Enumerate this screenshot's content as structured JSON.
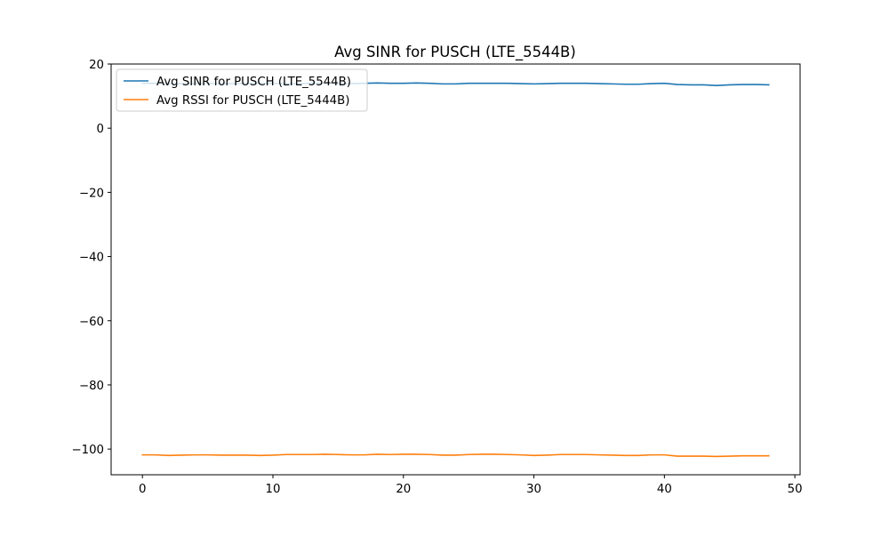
{
  "chart_data": {
    "type": "line",
    "title": "Avg SINR for PUSCH (LTE_5544B)",
    "xlabel": "",
    "ylabel": "",
    "xlim": [
      -2.4,
      50.4
    ],
    "ylim": [
      -108,
      20
    ],
    "xticks": [
      0,
      10,
      20,
      30,
      40,
      50
    ],
    "yticks": [
      20,
      0,
      -20,
      -40,
      -60,
      -80,
      -100
    ],
    "ytick_labels": [
      "20",
      "0",
      "−20",
      "−40",
      "−60",
      "−80",
      "−100"
    ],
    "grid": false,
    "legend_position": "top-left",
    "x": [
      0,
      1,
      2,
      3,
      4,
      5,
      6,
      7,
      8,
      9,
      10,
      11,
      12,
      13,
      14,
      15,
      16,
      17,
      18,
      19,
      20,
      21,
      22,
      23,
      24,
      25,
      26,
      27,
      28,
      29,
      30,
      31,
      32,
      33,
      34,
      35,
      36,
      37,
      38,
      39,
      40,
      41,
      42,
      43,
      44,
      45,
      46,
      47,
      48
    ],
    "series": [
      {
        "name": "Avg SINR for PUSCH (LTE_5544B)",
        "color": "#1f77b4",
        "values": [
          14.0,
          14.0,
          13.9,
          13.9,
          14.0,
          14.0,
          13.9,
          13.9,
          14.0,
          14.0,
          14.0,
          13.9,
          13.9,
          14.0,
          14.0,
          13.9,
          13.9,
          14.0,
          14.1,
          14.0,
          14.0,
          14.1,
          14.0,
          13.8,
          13.8,
          14.0,
          14.0,
          14.0,
          14.0,
          13.9,
          13.8,
          13.9,
          14.0,
          14.0,
          14.0,
          13.9,
          13.8,
          13.7,
          13.7,
          13.9,
          14.0,
          13.6,
          13.5,
          13.5,
          13.3,
          13.5,
          13.6,
          13.6,
          13.5
        ]
      },
      {
        "name": "Avg RSSI for PUSCH (LTE_5444B)",
        "color": "#ff7f0e",
        "values": [
          -101.8,
          -101.8,
          -102.0,
          -101.9,
          -101.8,
          -101.8,
          -101.9,
          -101.9,
          -101.9,
          -102.0,
          -101.9,
          -101.7,
          -101.7,
          -101.7,
          -101.6,
          -101.7,
          -101.8,
          -101.8,
          -101.6,
          -101.7,
          -101.6,
          -101.6,
          -101.7,
          -101.9,
          -101.9,
          -101.7,
          -101.6,
          -101.6,
          -101.7,
          -101.8,
          -102.0,
          -101.9,
          -101.7,
          -101.7,
          -101.7,
          -101.8,
          -101.9,
          -102.0,
          -102.0,
          -101.8,
          -101.8,
          -102.2,
          -102.2,
          -102.2,
          -102.3,
          -102.2,
          -102.1,
          -102.1,
          -102.1
        ]
      }
    ]
  }
}
